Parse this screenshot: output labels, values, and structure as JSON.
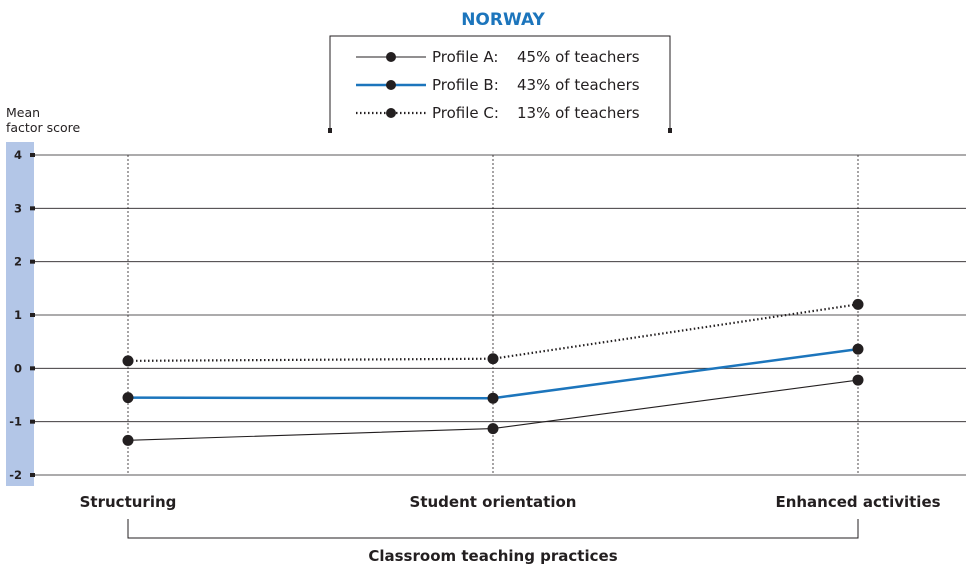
{
  "chart_data": {
    "type": "line",
    "title": "NORWAY",
    "ylabel_line1": "Mean",
    "ylabel_line2": "factor score",
    "xlabel": "Classroom teaching practices",
    "categories": [
      "Structuring",
      "Student orientation",
      "Enhanced activities"
    ],
    "ylim": [
      -2,
      4
    ],
    "yticks": [
      4,
      3,
      2,
      1,
      0,
      -1,
      -2
    ],
    "legend_position": "top-center",
    "series": [
      {
        "name": "Profile A:",
        "share": "45% of teachers",
        "values": [
          -1.35,
          -1.13,
          -0.22
        ],
        "color": "#231f20",
        "style": "solid-thin"
      },
      {
        "name": "Profile B:",
        "share": "43% of teachers",
        "values": [
          -0.55,
          -0.56,
          0.36
        ],
        "color": "#1c75bc",
        "style": "solid-thick"
      },
      {
        "name": "Profile C:",
        "share": "13% of teachers",
        "values": [
          0.14,
          0.18,
          1.2
        ],
        "color": "#231f20",
        "style": "dotted"
      }
    ],
    "colors": {
      "title": "#1c75bc",
      "axis_band": "#b3c6e7",
      "grid": "#231f20"
    }
  }
}
